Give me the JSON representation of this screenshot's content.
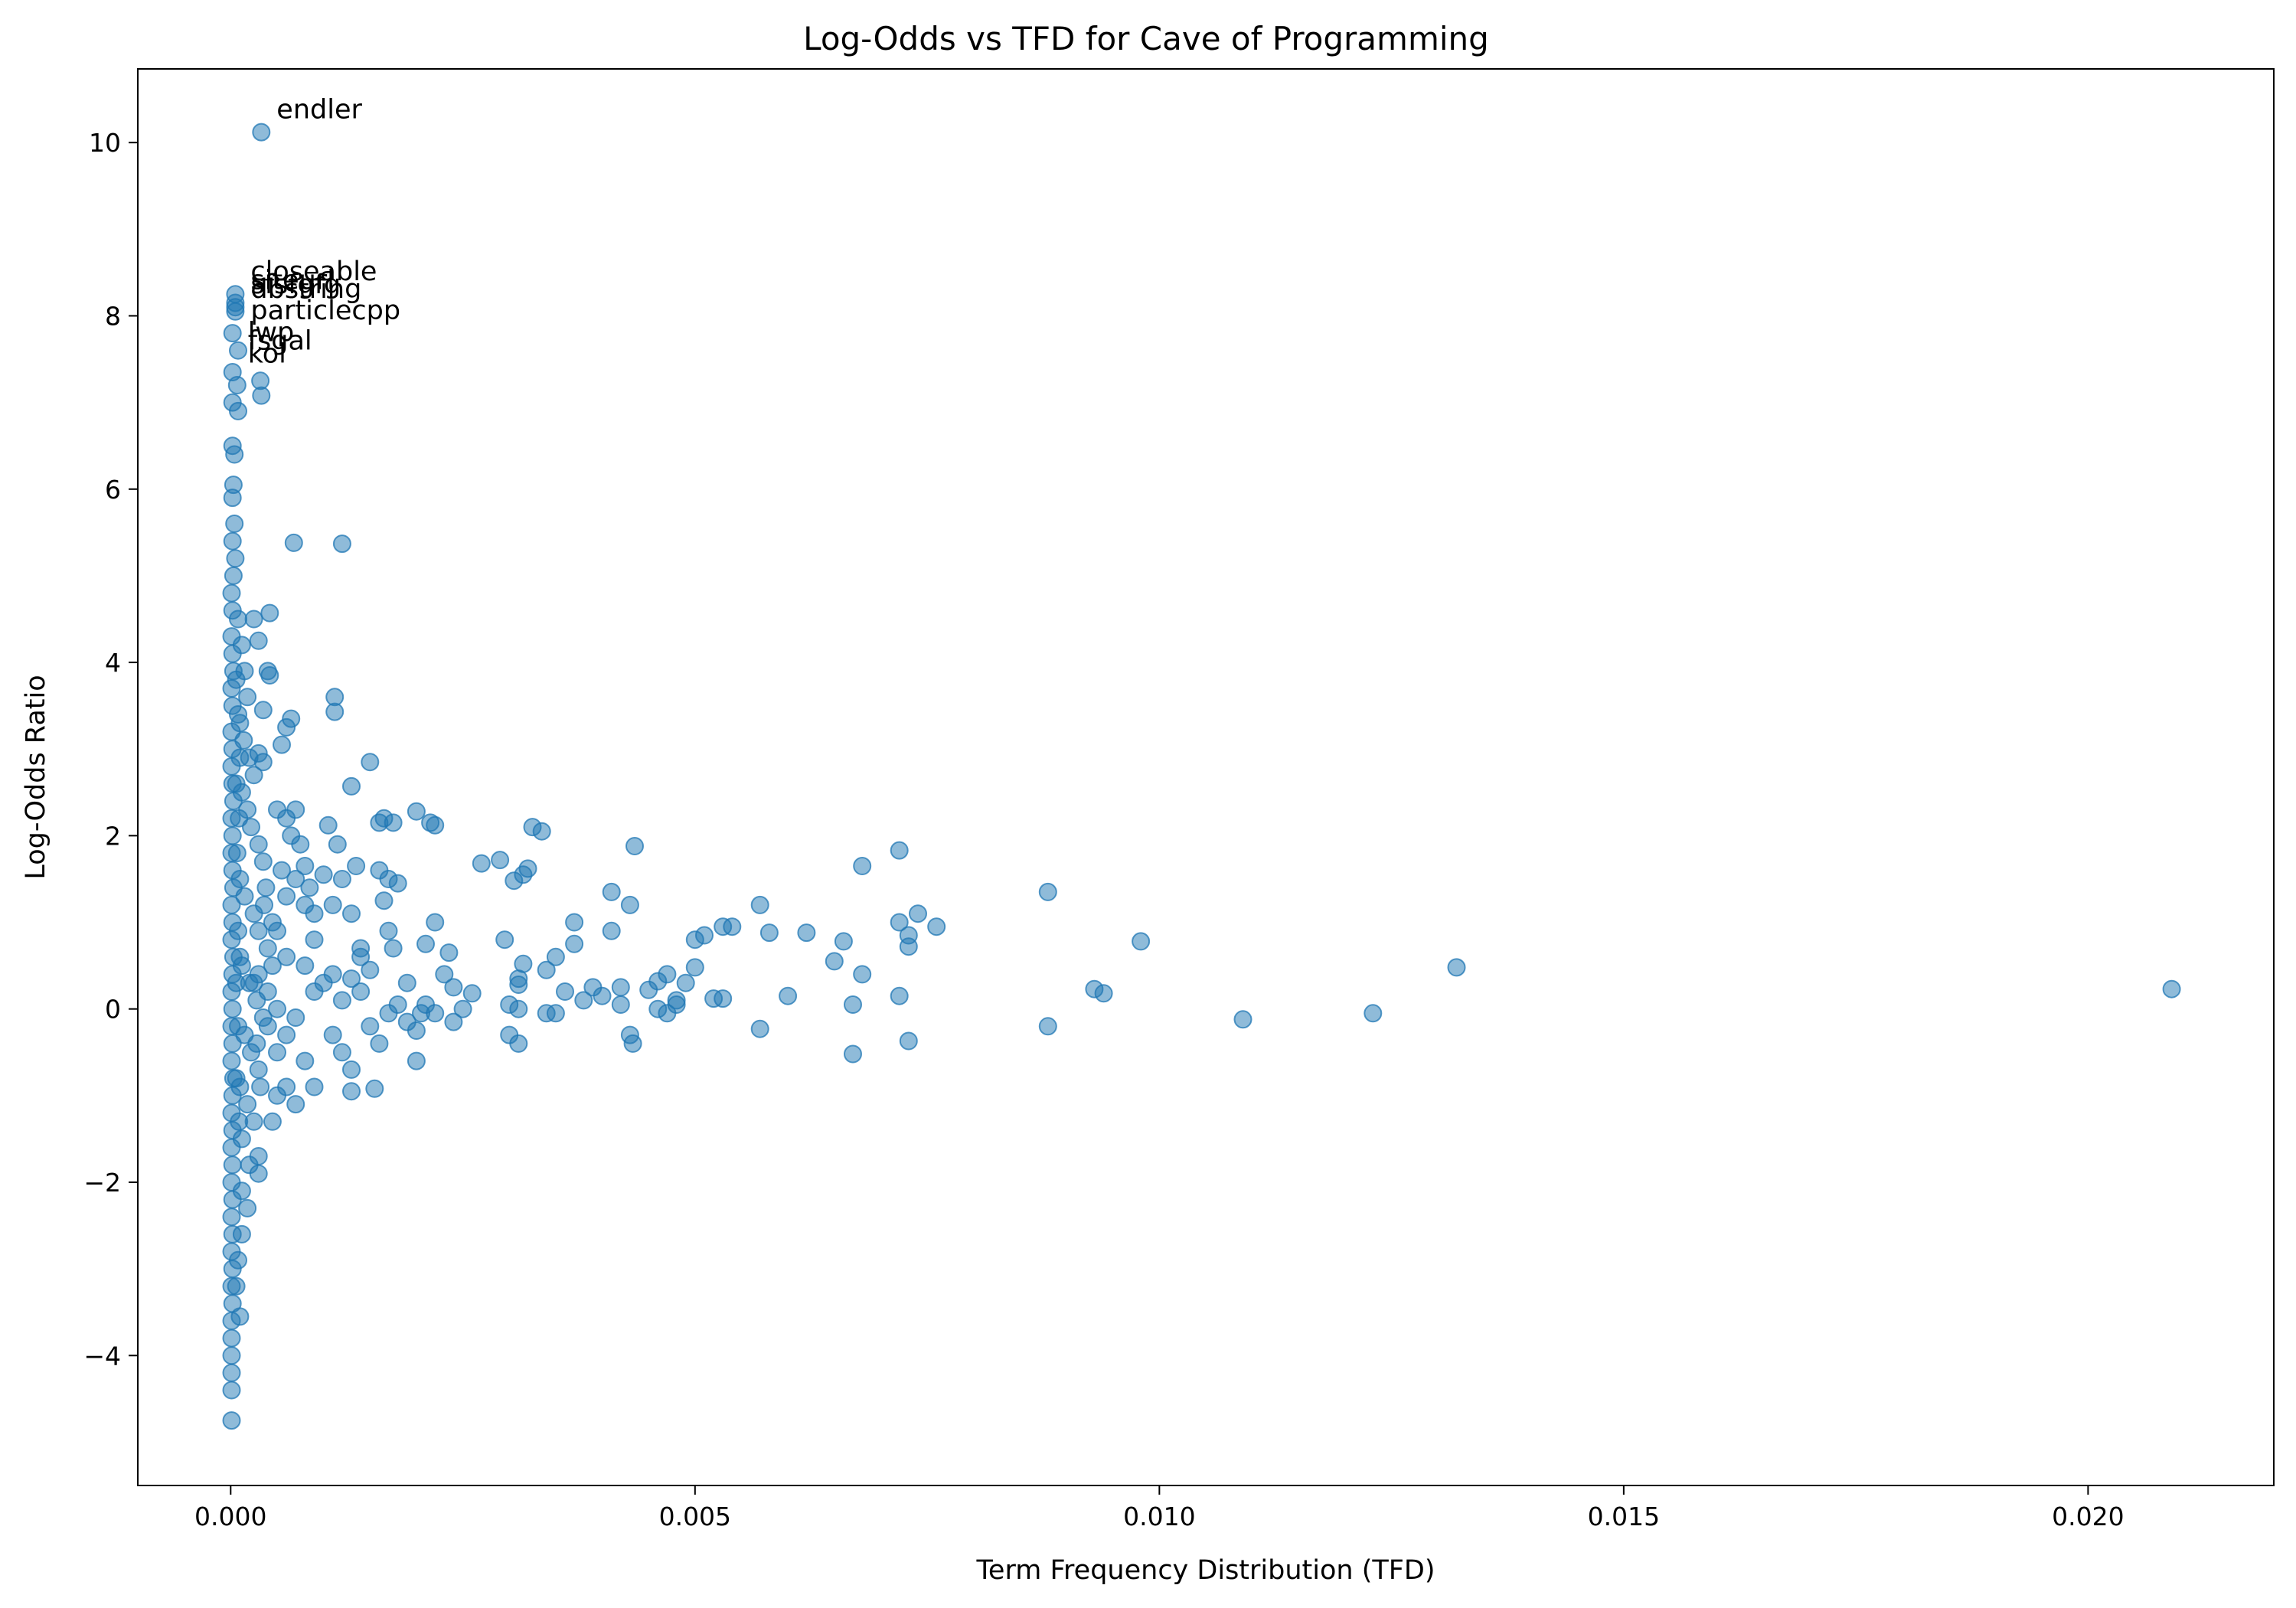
{
  "chart_data": {
    "type": "scatter",
    "title": "Log-Odds vs TFD for Cave of Programming",
    "xlabel": "Term Frequency Distribution (TFD)",
    "ylabel": "Log-Odds Ratio",
    "xlim": [
      -0.001,
      0.022
    ],
    "ylim": [
      -5.5,
      10.85
    ],
    "xticks": [
      0.0,
      0.005,
      0.01,
      0.015,
      0.02
    ],
    "xtick_labels": [
      "0.000",
      "0.005",
      "0.010",
      "0.015",
      "0.020"
    ],
    "yticks": [
      -4,
      -2,
      0,
      2,
      4,
      6,
      8,
      10
    ],
    "ytick_labels": [
      "−4",
      "−2",
      "0",
      "2",
      "4",
      "6",
      "8",
      "10"
    ],
    "grid": false,
    "marker_color": "#1f77b4",
    "marker_alpha": 0.5,
    "points": [
      [
        0.00033,
        10.12
      ],
      [
        5e-05,
        8.25
      ],
      [
        5e-05,
        8.15
      ],
      [
        5e-05,
        8.1
      ],
      [
        5e-05,
        8.05
      ],
      [
        2e-05,
        7.8
      ],
      [
        2e-05,
        7.35
      ],
      [
        2e-05,
        7.0
      ],
      [
        2e-05,
        6.5
      ],
      [
        4e-05,
        6.4
      ],
      [
        8e-05,
        6.9
      ],
      [
        7e-05,
        7.2
      ],
      [
        8e-05,
        7.6
      ],
      [
        3e-05,
        6.05
      ],
      [
        2e-05,
        5.9
      ],
      [
        4e-05,
        5.6
      ],
      [
        2e-05,
        5.4
      ],
      [
        5e-05,
        5.2
      ],
      [
        3e-05,
        5.0
      ],
      [
        1e-05,
        4.8
      ],
      [
        2e-05,
        4.6
      ],
      [
        1e-05,
        4.3
      ],
      [
        2e-05,
        4.1
      ],
      [
        3e-05,
        3.9
      ],
      [
        1e-05,
        3.7
      ],
      [
        2e-05,
        3.5
      ],
      [
        1e-05,
        3.2
      ],
      [
        2e-05,
        3.0
      ],
      [
        1e-05,
        2.8
      ],
      [
        2e-05,
        2.6
      ],
      [
        3e-05,
        2.4
      ],
      [
        1e-05,
        2.2
      ],
      [
        2e-05,
        2.0
      ],
      [
        1e-05,
        1.8
      ],
      [
        2e-05,
        1.6
      ],
      [
        3e-05,
        1.4
      ],
      [
        1e-05,
        1.2
      ],
      [
        2e-05,
        1.0
      ],
      [
        1e-05,
        0.8
      ],
      [
        3e-05,
        0.6
      ],
      [
        2e-05,
        0.4
      ],
      [
        1e-05,
        0.2
      ],
      [
        2e-05,
        0.0
      ],
      [
        1e-05,
        -0.2
      ],
      [
        2e-05,
        -0.4
      ],
      [
        1e-05,
        -0.6
      ],
      [
        3e-05,
        -0.8
      ],
      [
        2e-05,
        -1.0
      ],
      [
        1e-05,
        -1.2
      ],
      [
        2e-05,
        -1.4
      ],
      [
        1e-05,
        -1.6
      ],
      [
        2e-05,
        -1.8
      ],
      [
        1e-05,
        -2.0
      ],
      [
        2e-05,
        -2.2
      ],
      [
        1e-05,
        -2.4
      ],
      [
        2e-05,
        -2.6
      ],
      [
        1e-05,
        -2.8
      ],
      [
        2e-05,
        -3.0
      ],
      [
        1e-05,
        -3.2
      ],
      [
        2e-05,
        -3.4
      ],
      [
        1e-05,
        -3.6
      ],
      [
        1e-05,
        -3.8
      ],
      [
        1e-05,
        -4.0
      ],
      [
        1e-05,
        -4.2
      ],
      [
        1e-05,
        -4.4
      ],
      [
        1e-05,
        -4.75
      ],
      [
        8e-05,
        4.5
      ],
      [
        0.00012,
        4.2
      ],
      [
        0.00015,
        3.9
      ],
      [
        0.00018,
        3.6
      ],
      [
        0.0001,
        3.3
      ],
      [
        0.00014,
        3.1
      ],
      [
        0.0002,
        2.9
      ],
      [
        0.00025,
        2.7
      ],
      [
        0.00012,
        2.5
      ],
      [
        0.00018,
        2.3
      ],
      [
        0.00022,
        2.1
      ],
      [
        0.0003,
        1.9
      ],
      [
        0.00035,
        1.7
      ],
      [
        0.0001,
        1.5
      ],
      [
        0.00015,
        1.3
      ],
      [
        0.00025,
        1.1
      ],
      [
        0.0003,
        0.9
      ],
      [
        0.0004,
        0.7
      ],
      [
        0.00012,
        0.5
      ],
      [
        0.0002,
        0.3
      ],
      [
        0.00028,
        0.1
      ],
      [
        0.00035,
        -0.1
      ],
      [
        0.00015,
        -0.3
      ],
      [
        0.00022,
        -0.5
      ],
      [
        0.0003,
        -0.7
      ],
      [
        0.0001,
        -0.9
      ],
      [
        0.00018,
        -1.1
      ],
      [
        0.00025,
        -1.3
      ],
      [
        0.00012,
        -1.5
      ],
      [
        0.0002,
        -1.8
      ],
      [
        0.00012,
        -2.1
      ],
      [
        0.00018,
        -2.3
      ],
      [
        0.00012,
        -2.6
      ],
      [
        8e-05,
        -2.9
      ],
      [
        6e-05,
        -3.2
      ],
      [
        0.0001,
        -3.55
      ],
      [
        0.0003,
        -1.7
      ],
      [
        0.0003,
        -1.9
      ],
      [
        0.00045,
        -1.3
      ],
      [
        0.0005,
        -1.0
      ],
      [
        0.0006,
        -0.9
      ],
      [
        0.0007,
        -1.1
      ],
      [
        0.00045,
        0.5
      ],
      [
        0.0005,
        0.9
      ],
      [
        0.0006,
        1.3
      ],
      [
        0.0007,
        1.5
      ],
      [
        0.0008,
        1.2
      ],
      [
        0.0009,
        0.8
      ],
      [
        0.00055,
        1.6
      ],
      [
        0.00065,
        2.0
      ],
      [
        0.0005,
        2.3
      ],
      [
        0.0006,
        2.2
      ],
      [
        0.0007,
        2.3
      ],
      [
        0.0004,
        3.9
      ],
      [
        0.00042,
        3.85
      ],
      [
        0.0003,
        4.25
      ],
      [
        0.00025,
        4.5
      ],
      [
        0.00042,
        4.57
      ],
      [
        0.00055,
        3.05
      ],
      [
        0.0006,
        3.25
      ],
      [
        0.00065,
        3.35
      ],
      [
        0.00035,
        3.45
      ],
      [
        0.0003,
        2.95
      ],
      [
        0.00035,
        2.85
      ],
      [
        0.00032,
        7.25
      ],
      [
        0.00033,
        7.08
      ],
      [
        0.00068,
        5.38
      ],
      [
        0.0012,
        5.37
      ],
      [
        0.00112,
        3.6
      ],
      [
        0.00112,
        3.43
      ],
      [
        0.0015,
        2.85
      ],
      [
        0.0013,
        2.57
      ],
      [
        0.00075,
        1.9
      ],
      [
        0.0008,
        1.65
      ],
      [
        0.00085,
        1.4
      ],
      [
        0.0009,
        1.1
      ],
      [
        0.001,
        1.55
      ],
      [
        0.0011,
        1.2
      ],
      [
        0.00105,
        2.12
      ],
      [
        0.00115,
        1.9
      ],
      [
        0.0012,
        1.5
      ],
      [
        0.0013,
        1.1
      ],
      [
        0.0014,
        0.7
      ],
      [
        0.00135,
        1.65
      ],
      [
        0.0016,
        2.15
      ],
      [
        0.00165,
        2.2
      ],
      [
        0.0017,
        1.5
      ],
      [
        0.0018,
        1.45
      ],
      [
        0.00175,
        2.15
      ],
      [
        0.0016,
        1.6
      ],
      [
        0.00165,
        1.25
      ],
      [
        0.0017,
        0.9
      ],
      [
        0.00175,
        0.7
      ],
      [
        0.0019,
        0.3
      ],
      [
        0.0021,
        0.75
      ],
      [
        0.0022,
        1.0
      ],
      [
        0.002,
        2.28
      ],
      [
        0.00215,
        2.15
      ],
      [
        0.0022,
        2.12
      ],
      [
        0.0023,
        0.4
      ],
      [
        0.00235,
        0.65
      ],
      [
        0.0024,
        0.25
      ],
      [
        0.001,
        0.3
      ],
      [
        0.0011,
        -0.3
      ],
      [
        0.0012,
        -0.5
      ],
      [
        0.0013,
        -0.7
      ],
      [
        0.0013,
        -0.95
      ],
      [
        0.00155,
        -0.92
      ],
      [
        0.0015,
        -0.2
      ],
      [
        0.0016,
        -0.4
      ],
      [
        0.0017,
        -0.05
      ],
      [
        0.0018,
        0.05
      ],
      [
        0.0019,
        -0.15
      ],
      [
        0.002,
        -0.25
      ],
      [
        0.002,
        -0.6
      ],
      [
        0.00205,
        -0.05
      ],
      [
        0.0021,
        0.05
      ],
      [
        0.0022,
        -0.05
      ],
      [
        0.0024,
        -0.15
      ],
      [
        0.0025,
        0.0
      ],
      [
        0.0026,
        0.18
      ],
      [
        0.0027,
        1.68
      ],
      [
        0.0029,
        1.72
      ],
      [
        0.00295,
        0.8
      ],
      [
        0.003,
        0.05
      ],
      [
        0.003,
        -0.3
      ],
      [
        0.0031,
        -0.4
      ],
      [
        0.0031,
        0.0
      ],
      [
        0.0031,
        0.28
      ],
      [
        0.00315,
        0.52
      ],
      [
        0.0031,
        0.35
      ],
      [
        0.00305,
        1.48
      ],
      [
        0.00315,
        1.55
      ],
      [
        0.0032,
        1.62
      ],
      [
        0.00325,
        2.1
      ],
      [
        0.00335,
        2.05
      ],
      [
        0.0034,
        0.45
      ],
      [
        0.0034,
        -0.05
      ],
      [
        0.0035,
        0.6
      ],
      [
        0.0035,
        -0.05
      ],
      [
        0.0036,
        0.2
      ],
      [
        0.0037,
        0.75
      ],
      [
        0.0037,
        1.0
      ],
      [
        0.0038,
        0.1
      ],
      [
        0.0039,
        0.25
      ],
      [
        0.004,
        0.15
      ],
      [
        0.0041,
        1.35
      ],
      [
        0.0041,
        0.9
      ],
      [
        0.0042,
        0.25
      ],
      [
        0.0042,
        0.05
      ],
      [
        0.0043,
        1.2
      ],
      [
        0.0043,
        -0.3
      ],
      [
        0.00433,
        -0.4
      ],
      [
        0.00435,
        1.88
      ],
      [
        0.0045,
        0.22
      ],
      [
        0.0046,
        0.0
      ],
      [
        0.0046,
        0.32
      ],
      [
        0.0047,
        -0.05
      ],
      [
        0.0047,
        0.4
      ],
      [
        0.0048,
        0.1
      ],
      [
        0.0048,
        0.05
      ],
      [
        0.0049,
        0.3
      ],
      [
        0.005,
        0.48
      ],
      [
        0.005,
        0.8
      ],
      [
        0.0051,
        0.85
      ],
      [
        0.0052,
        0.12
      ],
      [
        0.0053,
        0.12
      ],
      [
        0.0053,
        0.95
      ],
      [
        0.0054,
        0.95
      ],
      [
        0.0057,
        -0.23
      ],
      [
        0.0057,
        1.2
      ],
      [
        0.0058,
        0.88
      ],
      [
        0.006,
        0.15
      ],
      [
        0.0062,
        0.88
      ],
      [
        0.0065,
        0.55
      ],
      [
        0.0066,
        0.78
      ],
      [
        0.0067,
        0.05
      ],
      [
        0.0067,
        -0.52
      ],
      [
        0.0068,
        0.4
      ],
      [
        0.0068,
        1.65
      ],
      [
        0.0072,
        1.0
      ],
      [
        0.0072,
        0.15
      ],
      [
        0.0072,
        1.83
      ],
      [
        0.0073,
        0.72
      ],
      [
        0.0073,
        0.85
      ],
      [
        0.0073,
        -0.37
      ],
      [
        0.0074,
        1.1
      ],
      [
        0.0076,
        0.95
      ],
      [
        0.0088,
        1.35
      ],
      [
        0.0088,
        -0.2
      ],
      [
        0.0093,
        0.23
      ],
      [
        0.0094,
        0.18
      ],
      [
        0.0098,
        0.78
      ],
      [
        0.0109,
        -0.12
      ],
      [
        0.0123,
        -0.05
      ],
      [
        0.0132,
        0.48
      ],
      [
        0.0209,
        0.23
      ],
      [
        0.0008,
        0.5
      ],
      [
        0.0009,
        0.2
      ],
      [
        0.0007,
        -0.1
      ],
      [
        0.0006,
        -0.3
      ],
      [
        0.0008,
        -0.6
      ],
      [
        0.0009,
        -0.9
      ],
      [
        0.0011,
        0.4
      ],
      [
        0.0012,
        0.1
      ],
      [
        0.0013,
        0.35
      ],
      [
        0.0014,
        0.6
      ],
      [
        0.0015,
        0.45
      ],
      [
        0.0014,
        0.2
      ],
      [
        0.0005,
        -0.5
      ],
      [
        0.0004,
        -0.2
      ],
      [
        0.0003,
        0.4
      ],
      [
        0.0004,
        0.2
      ],
      [
        0.0005,
        0.0
      ],
      [
        0.0006,
        0.6
      ],
      [
        0.00025,
        0.3
      ],
      [
        0.00028,
        -0.4
      ],
      [
        0.00032,
        -0.9
      ],
      [
        0.00036,
        1.2
      ],
      [
        0.00038,
        1.4
      ],
      [
        0.00045,
        1.0
      ],
      [
        8e-05,
        0.9
      ],
      [
        0.0001,
        0.6
      ],
      [
        6e-05,
        0.3
      ],
      [
        8e-05,
        -0.2
      ],
      [
        6e-05,
        -0.8
      ],
      [
        9e-05,
        -1.3
      ],
      [
        7e-05,
        1.8
      ],
      [
        9e-05,
        2.2
      ],
      [
        6e-05,
        2.6
      ],
      [
        8e-05,
        3.4
      ],
      [
        6e-05,
        3.8
      ],
      [
        0.0001,
        2.9
      ]
    ],
    "annotations": [
      {
        "text": "endler",
        "x": 0.00033,
        "y": 10.12
      },
      {
        "text": "closeable",
        "x": 5e-05,
        "y": 8.25
      },
      {
        "text": "siteurl",
        "x": 5e-05,
        "y": 8.15
      },
      {
        "text": "sfsfgfg",
        "x": 5e-05,
        "y": 8.1
      },
      {
        "text": "dbstring",
        "x": 5e-05,
        "y": 8.05
      },
      {
        "text": "particlecpp",
        "x": 5e-05,
        "y": 7.8
      },
      {
        "text": "lwp",
        "x": 2e-05,
        "y": 7.55
      },
      {
        "text": "fsgal",
        "x": 2e-05,
        "y": 7.45
      },
      {
        "text": "kol",
        "x": 2e-05,
        "y": 7.3
      }
    ]
  }
}
